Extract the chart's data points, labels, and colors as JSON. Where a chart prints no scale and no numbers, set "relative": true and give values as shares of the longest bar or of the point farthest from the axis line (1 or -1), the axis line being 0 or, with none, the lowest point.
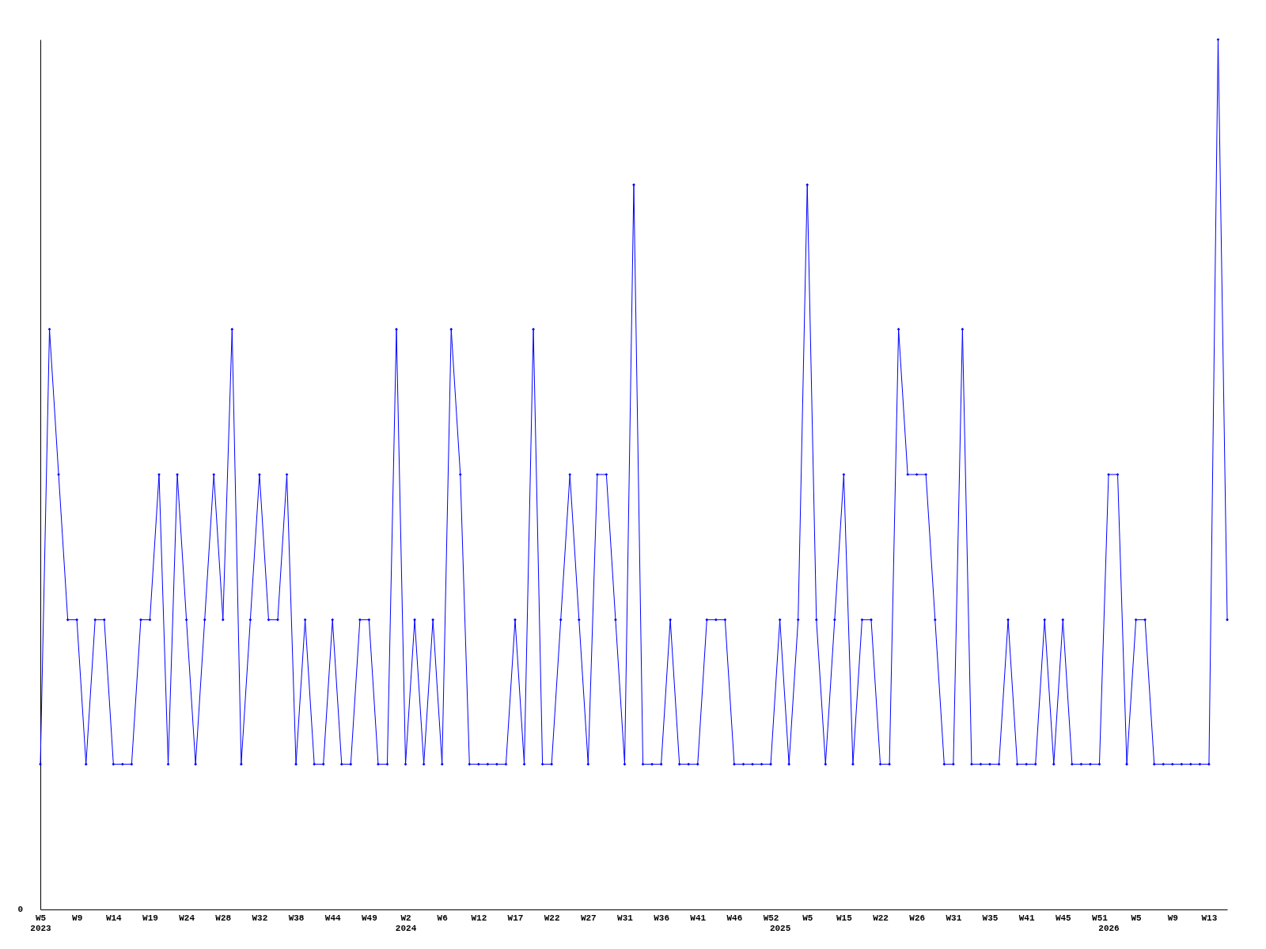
{
  "chart_data": {
    "type": "line",
    "relative": true,
    "grid": false,
    "legend": false,
    "marker": "diamond",
    "line_style": "solid",
    "categories": [
      "W5\n2023",
      null,
      null,
      null,
      "W9",
      null,
      null,
      null,
      "W14",
      null,
      null,
      null,
      "W19",
      null,
      null,
      null,
      "W24",
      null,
      null,
      null,
      "W28",
      null,
      null,
      null,
      "W32",
      null,
      null,
      null,
      "W38",
      null,
      null,
      null,
      "W44",
      null,
      null,
      null,
      "W49",
      null,
      null,
      null,
      "W2\n2024",
      null,
      null,
      null,
      "W6",
      null,
      null,
      null,
      "W12",
      null,
      null,
      null,
      "W17",
      null,
      null,
      null,
      "W22",
      null,
      null,
      null,
      "W27",
      null,
      null,
      null,
      "W31",
      null,
      null,
      null,
      "W36",
      null,
      null,
      null,
      "W41",
      null,
      null,
      null,
      "W46",
      null,
      null,
      null,
      "W52",
      "\n2025",
      null,
      null,
      "W5",
      null,
      null,
      null,
      "W15",
      null,
      null,
      null,
      "W22",
      null,
      null,
      null,
      "W26",
      null,
      null,
      null,
      "W31",
      null,
      null,
      null,
      "W35",
      null,
      null,
      null,
      "W41",
      null,
      null,
      null,
      "W45",
      null,
      null,
      null,
      "W51",
      "\n2026",
      null,
      null,
      "W5",
      null,
      null,
      null,
      "W9",
      null,
      null,
      null,
      "W13",
      null,
      null
    ],
    "series": [
      {
        "color": "#0000ff",
        "values": [
          0.167,
          0.667,
          0.5,
          0.333,
          0.333,
          0.167,
          0.333,
          0.333,
          0.167,
          0.167,
          0.167,
          0.333,
          0.333,
          0.5,
          0.167,
          0.5,
          0.333,
          0.167,
          0.333,
          0.5,
          0.333,
          0.667,
          0.167,
          0.333,
          0.5,
          0.333,
          0.333,
          0.5,
          0.167,
          0.333,
          0.167,
          0.167,
          0.333,
          0.167,
          0.167,
          0.333,
          0.333,
          0.167,
          0.167,
          0.667,
          0.167,
          0.333,
          0.167,
          0.333,
          0.167,
          0.667,
          0.5,
          0.167,
          0.167,
          0.167,
          0.167,
          0.167,
          0.333,
          0.167,
          0.667,
          0.167,
          0.167,
          0.333,
          0.5,
          0.333,
          0.167,
          0.5,
          0.5,
          0.333,
          0.167,
          0.833,
          0.167,
          0.167,
          0.167,
          0.333,
          0.167,
          0.167,
          0.167,
          0.333,
          0.333,
          0.333,
          0.167,
          0.167,
          0.167,
          0.167,
          0.167,
          0.333,
          0.167,
          0.333,
          0.833,
          0.333,
          0.167,
          0.333,
          0.5,
          0.167,
          0.333,
          0.333,
          0.167,
          0.167,
          0.667,
          0.5,
          0.5,
          0.5,
          0.333,
          0.167,
          0.167,
          0.667,
          0.167,
          0.167,
          0.167,
          0.167,
          0.333,
          0.167,
          0.167,
          0.167,
          0.333,
          0.167,
          0.333,
          0.167,
          0.167,
          0.167,
          0.167,
          0.5,
          0.5,
          0.167,
          0.333,
          0.333,
          0.167,
          0.167,
          0.167,
          0.167,
          0.167,
          0.167,
          0.167,
          1,
          0.333
        ]
      }
    ],
    "annotations": [
      "0"
    ]
  }
}
